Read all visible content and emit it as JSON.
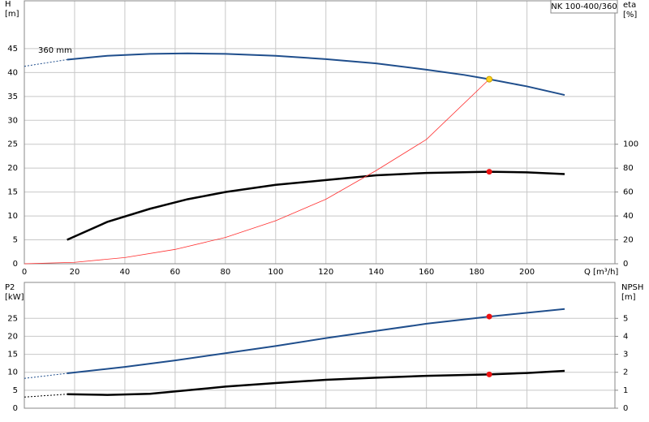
{
  "chart_data": [
    {
      "type": "line",
      "title": "NK 100-400/360",
      "y_label": [
        "H",
        "[m]"
      ],
      "y2_label": [
        "eta",
        "[%]"
      ],
      "x_label": "Q [m³/h]",
      "xlim": [
        0,
        235
      ],
      "xticks": [
        0,
        20,
        40,
        60,
        80,
        100,
        120,
        140,
        160,
        180,
        200
      ],
      "x_tick_labels": true,
      "ylim": [
        0,
        55
      ],
      "yticks": [
        0,
        5,
        10,
        15,
        20,
        25,
        30,
        35,
        40,
        45
      ],
      "y2lim": [
        0,
        220
      ],
      "y2ticks": [
        0,
        20,
        40,
        60,
        80,
        100
      ],
      "grid": true,
      "series": [
        {
          "name": "360 mm",
          "color": "#1f4e8c",
          "width": 2,
          "dashed_to": 17,
          "x": [
            0,
            17,
            33,
            50,
            65,
            80,
            100,
            120,
            140,
            160,
            175,
            185,
            200,
            215
          ],
          "values": [
            41.3,
            42.7,
            43.5,
            43.9,
            44.0,
            43.9,
            43.5,
            42.8,
            41.9,
            40.6,
            39.5,
            38.6,
            37.1,
            35.3
          ]
        },
        {
          "color": "#000000",
          "width": 2.5,
          "axis": "y2",
          "x": [
            17,
            33,
            50,
            65,
            80,
            100,
            120,
            140,
            160,
            185,
            200,
            215
          ],
          "values": [
            20,
            35,
            46,
            54,
            60,
            66,
            70,
            74,
            76,
            77,
            76.5,
            75
          ]
        },
        {
          "color": "#ff3030",
          "width": 0.8,
          "x": [
            0,
            20,
            40,
            60,
            80,
            100,
            120,
            140,
            160,
            185
          ],
          "values": [
            0,
            0.3,
            1.3,
            3,
            5.5,
            9,
            13.5,
            19.5,
            26,
            38.6
          ]
        }
      ],
      "points": [
        {
          "x": 185,
          "y": 38.6,
          "color": "#ffd21f"
        },
        {
          "x": 185,
          "y": 77,
          "axis": "y2",
          "color": "#ee1111"
        }
      ]
    },
    {
      "type": "line",
      "y_label": [
        "P2",
        "[kW]"
      ],
      "y2_label": [
        "NPSH",
        "[m]"
      ],
      "xlim": [
        0,
        235
      ],
      "xticks": [
        0,
        20,
        40,
        60,
        80,
        100,
        120,
        140,
        160,
        180,
        200
      ],
      "x_tick_labels": false,
      "ylim": [
        0,
        35
      ],
      "yticks": [
        0,
        5,
        10,
        15,
        20,
        25
      ],
      "y2lim": [
        0,
        7
      ],
      "y2ticks": [
        0,
        1,
        2,
        3,
        4,
        5
      ],
      "grid": true,
      "series": [
        {
          "color": "#1f4e8c",
          "width": 2,
          "dashed_to": 17,
          "x": [
            0,
            17,
            40,
            60,
            80,
            100,
            120,
            140,
            160,
            185,
            215
          ],
          "values": [
            8.3,
            9.7,
            11.5,
            13.3,
            15.3,
            17.3,
            19.5,
            21.5,
            23.5,
            25.5,
            27.6
          ]
        },
        {
          "color": "#000000",
          "width": 2.5,
          "axis": "y2",
          "dashed_to": 17,
          "x": [
            0,
            17,
            33,
            50,
            65,
            80,
            100,
            120,
            140,
            160,
            185,
            200,
            215
          ],
          "values": [
            0.62,
            0.78,
            0.74,
            0.8,
            1.0,
            1.2,
            1.4,
            1.58,
            1.7,
            1.8,
            1.88,
            1.96,
            2.08
          ]
        }
      ],
      "points": [
        {
          "x": 185,
          "y": 25.5,
          "color": "#ee1111"
        },
        {
          "x": 185,
          "y": 1.88,
          "axis": "y2",
          "color": "#ee1111"
        }
      ]
    }
  ]
}
